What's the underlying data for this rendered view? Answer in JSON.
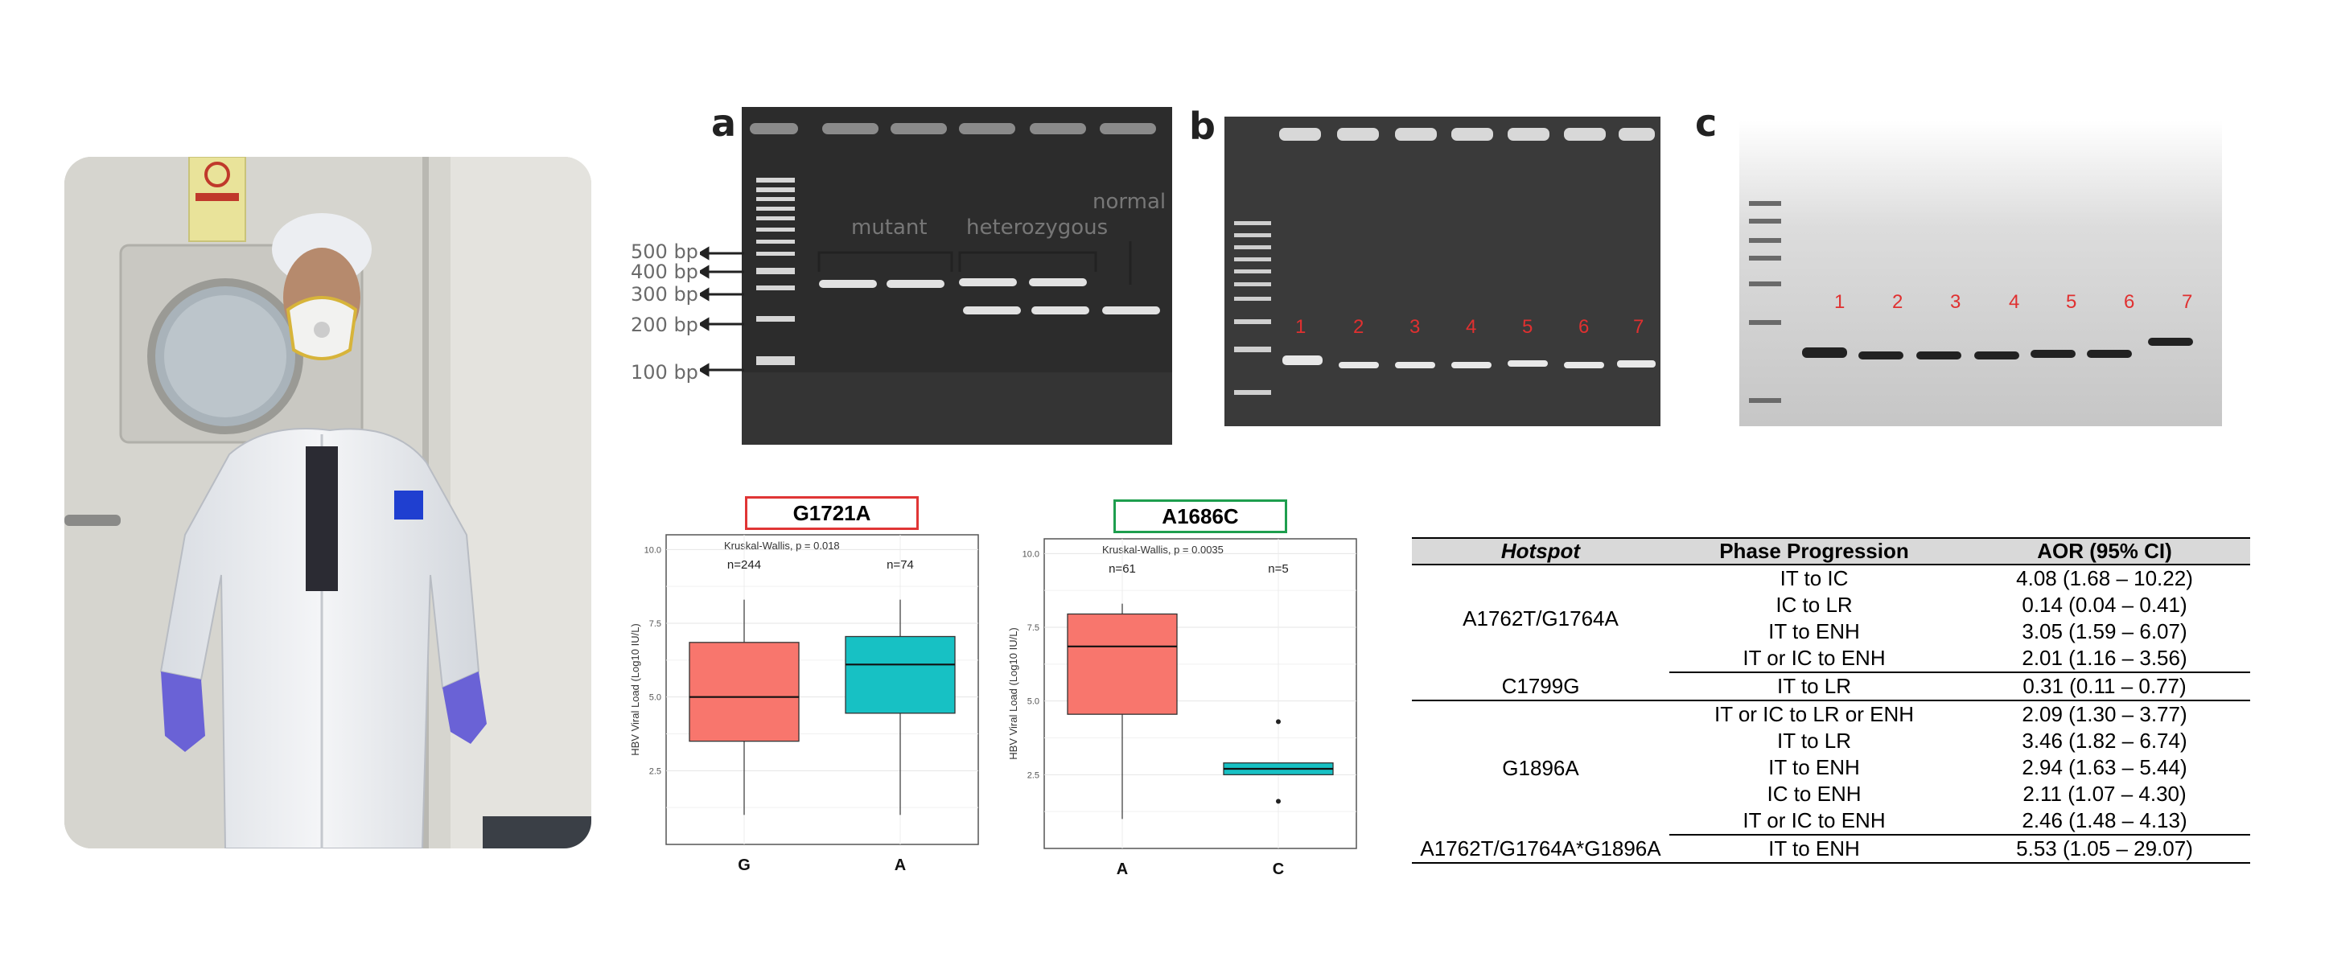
{
  "photo": {
    "alt": "Researcher in protective suit, face mask and purple gloves standing in a laboratory"
  },
  "gels": {
    "a": {
      "letter": "a",
      "labels": {
        "mutant": "mutant",
        "heterozygous": "heterozygous",
        "normal": "normal"
      },
      "size_markers": [
        "500 bp",
        "400 bp",
        "300 bp",
        "200 bp",
        "100 bp"
      ]
    },
    "b": {
      "letter": "b",
      "lanes": [
        "1",
        "2",
        "3",
        "4",
        "5",
        "6",
        "7"
      ]
    },
    "c": {
      "letter": "c",
      "lanes": [
        "1",
        "2",
        "3",
        "4",
        "5",
        "6",
        "7"
      ]
    }
  },
  "chart_data": [
    {
      "type": "box",
      "title": "G1721A",
      "title_border_color": "#e03535",
      "subtitle": "Kruskal-Wallis, p = 0.018",
      "ylabel": "HBV Viral Load (Log10 IU/L)",
      "ylim": [
        0,
        10.5
      ],
      "yticks": [
        "2.5",
        "5.0",
        "7.5",
        "10.0"
      ],
      "categories": [
        "G",
        "A"
      ],
      "counts": [
        "n=244",
        "n=74"
      ],
      "colors": [
        "#f8766d",
        "#17c1c4"
      ],
      "boxes": [
        {
          "min": 1.0,
          "q1": 3.5,
          "median": 5.0,
          "q3": 6.85,
          "max": 8.3,
          "outliers": []
        },
        {
          "min": 1.0,
          "q1": 4.45,
          "median": 6.1,
          "q3": 7.05,
          "max": 8.3,
          "outliers": []
        }
      ]
    },
    {
      "type": "box",
      "title": "A1686C",
      "title_border_color": "#1e9e4e",
      "subtitle": "Kruskal-Wallis, p = 0.0035",
      "ylabel": "HBV Viral Load (Log10 IU/L)",
      "ylim": [
        0,
        10.5
      ],
      "yticks": [
        "2.5",
        "5.0",
        "7.5",
        "10.0"
      ],
      "categories": [
        "A",
        "C"
      ],
      "counts": [
        "n=61",
        "n=5"
      ],
      "colors": [
        "#f8766d",
        "#17c1c4"
      ],
      "boxes": [
        {
          "min": 1.0,
          "q1": 4.55,
          "median": 6.85,
          "q3": 7.95,
          "max": 8.3,
          "outliers": []
        },
        {
          "min": 2.5,
          "q1": 2.5,
          "median": 2.7,
          "q3": 2.9,
          "max": 2.9,
          "outliers": [
            4.3,
            1.6
          ]
        }
      ]
    }
  ],
  "table": {
    "headers": [
      "Hotspot",
      "Phase Progression",
      "AOR (95% CI)"
    ],
    "groups": [
      {
        "hotspot": "A1762T/G1764A",
        "rows": [
          {
            "phase": "IT to IC",
            "aor": "4.08 (1.68 – 10.22)"
          },
          {
            "phase": "IC to LR",
            "aor": "0.14 (0.04 – 0.41)"
          },
          {
            "phase": "IT to ENH",
            "aor": "3.05 (1.59 – 6.07)"
          },
          {
            "phase": "IT or IC to ENH",
            "aor": "2.01 (1.16 – 3.56)"
          }
        ]
      },
      {
        "hotspot": "C1799G",
        "rows": [
          {
            "phase": "IT to LR",
            "aor": "0.31 (0.11 – 0.77)"
          }
        ]
      },
      {
        "hotspot": "G1896A",
        "rows": [
          {
            "phase": "IT or IC to LR or ENH",
            "aor": "2.09 (1.30 – 3.77)"
          },
          {
            "phase": "IT to LR",
            "aor": "3.46 (1.82 – 6.74)"
          },
          {
            "phase": "IT to ENH",
            "aor": "2.94 (1.63 – 5.44)"
          },
          {
            "phase": "IC to ENH",
            "aor": "2.11 (1.07 – 4.30)"
          },
          {
            "phase": "IT or IC to ENH",
            "aor": "2.46 (1.48 – 4.13)"
          }
        ]
      },
      {
        "hotspot": "A1762T/G1764A*G1896A",
        "rows": [
          {
            "phase": "IT to ENH",
            "aor": "5.53 (1.05 – 29.07)"
          }
        ]
      }
    ]
  }
}
